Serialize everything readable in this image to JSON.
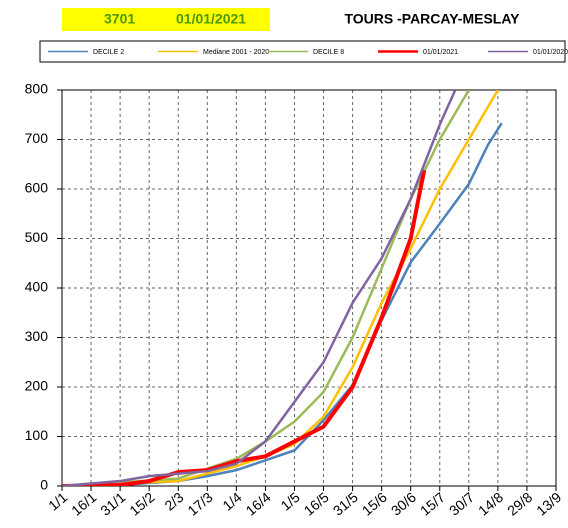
{
  "chart_data": {
    "type": "line",
    "code": "3701",
    "date": "01/01/2021",
    "title": "TOURS -PARCAY-MESLAY",
    "xlim": [
      0,
      255
    ],
    "ylim": [
      0,
      800
    ],
    "yticks": [
      0,
      100,
      200,
      300,
      400,
      500,
      600,
      700,
      800
    ],
    "xticks": [
      {
        "value": 0,
        "label": "1/1"
      },
      {
        "value": 15,
        "label": "16/1"
      },
      {
        "value": 30,
        "label": "31/1"
      },
      {
        "value": 45,
        "label": "15/2"
      },
      {
        "value": 60,
        "label": "2/3"
      },
      {
        "value": 75,
        "label": "17/3"
      },
      {
        "value": 90,
        "label": "1/4"
      },
      {
        "value": 105,
        "label": "16/4"
      },
      {
        "value": 120,
        "label": "1/5"
      },
      {
        "value": 135,
        "label": "16/5"
      },
      {
        "value": 150,
        "label": "31/5"
      },
      {
        "value": 165,
        "label": "15/6"
      },
      {
        "value": 180,
        "label": "30/6"
      },
      {
        "value": 195,
        "label": "15/7"
      },
      {
        "value": 210,
        "label": "30/7"
      },
      {
        "value": 225,
        "label": "14/8"
      },
      {
        "value": 240,
        "label": "29/8"
      },
      {
        "value": 255,
        "label": "13/9"
      }
    ],
    "grid": true,
    "series": [
      {
        "name": "DECILE 2",
        "color": "#4f81bd",
        "width": 2.5,
        "x": [
          0,
          30,
          60,
          75,
          90,
          105,
          120,
          135,
          150,
          165,
          180,
          195,
          210,
          220,
          227
        ],
        "values": [
          0,
          2,
          10,
          20,
          32,
          52,
          72,
          133,
          204,
          335,
          452,
          530,
          610,
          690,
          733
        ]
      },
      {
        "name": "Mediane 2001 - 2020",
        "color": "#ffc000",
        "width": 2.5,
        "x": [
          0,
          60,
          75,
          90,
          105,
          120,
          135,
          150,
          165,
          180,
          195,
          210,
          225
        ],
        "values": [
          0,
          10,
          25,
          40,
          60,
          85,
          140,
          240,
          370,
          480,
          600,
          700,
          800
        ]
      },
      {
        "name": "DECILE 8",
        "color": "#9bbb59",
        "width": 2.5,
        "x": [
          0,
          60,
          75,
          90,
          105,
          120,
          135,
          150,
          165,
          180,
          195,
          210
        ],
        "values": [
          0,
          15,
          35,
          55,
          90,
          130,
          190,
          300,
          440,
          580,
          700,
          800
        ]
      },
      {
        "name": "01/01/2021",
        "color": "#ff0000",
        "width": 4,
        "x": [
          0,
          30,
          45,
          60,
          75,
          90,
          105,
          120,
          135,
          150,
          165,
          180,
          185,
          187
        ],
        "values": [
          0,
          2,
          10,
          28,
          32,
          50,
          60,
          90,
          120,
          200,
          340,
          500,
          600,
          638
        ]
      },
      {
        "name": "01/01/2020",
        "color": "#8064a2",
        "width": 2.5,
        "x": [
          0,
          30,
          45,
          60,
          75,
          90,
          105,
          120,
          135,
          150,
          165,
          180,
          195,
          203
        ],
        "values": [
          0,
          10,
          20,
          25,
          30,
          45,
          90,
          170,
          250,
          370,
          460,
          580,
          730,
          800
        ]
      }
    ]
  }
}
